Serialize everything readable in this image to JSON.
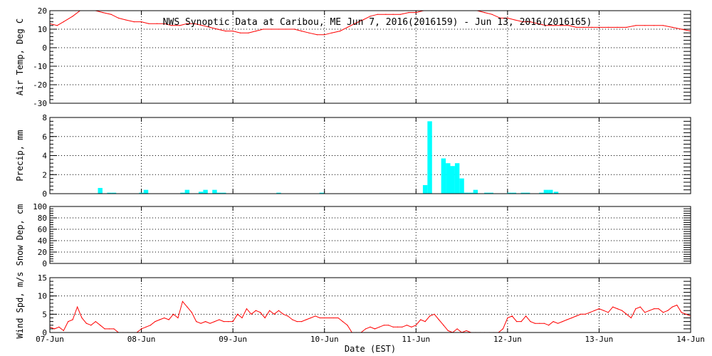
{
  "chart_data": {
    "type": "line",
    "title": "NWS Synoptic Data at Caribou, ME   Jun  7, 2016(2016159) - Jun 13, 2016(2016165)",
    "xlabel": "Date (EST)",
    "x_ticks": [
      "07-Jun",
      "08-Jun",
      "09-Jun",
      "10-Jun",
      "11-Jun",
      "12-Jun",
      "13-Jun",
      "14-Jun"
    ],
    "x_range_days": [
      0,
      7
    ],
    "grid": true,
    "colors": {
      "line": "#ff0000",
      "bar": "#00ffff",
      "axis": "#000000",
      "grid": "#000000"
    },
    "panels": [
      {
        "type": "line",
        "ylabel": "Air Temp, Deg C",
        "ylim": [
          -30,
          20
        ],
        "yticks": [
          20,
          10,
          0,
          -10,
          -20,
          -30
        ],
        "series": [
          {
            "color": "#ff0000",
            "x_days": [
              0.0,
              0.08,
              0.15,
              0.25,
              0.33,
              0.4,
              0.5,
              0.58,
              0.67,
              0.75,
              0.83,
              0.92,
              1.0,
              1.08,
              1.17,
              1.25,
              1.33,
              1.42,
              1.5,
              1.58,
              1.67,
              1.75,
              1.83,
              1.92,
              2.0,
              2.08,
              2.17,
              2.25,
              2.33,
              2.42,
              2.5,
              2.58,
              2.67,
              2.75,
              2.83,
              2.92,
              3.0,
              3.08,
              3.17,
              3.25,
              3.33,
              3.42,
              3.5,
              3.58,
              3.67,
              3.75,
              3.83,
              3.92,
              4.0,
              4.08,
              4.17,
              4.25,
              4.33,
              4.42,
              4.5,
              4.58,
              4.67,
              4.75,
              4.83,
              4.92,
              5.0,
              5.08,
              5.17,
              5.25,
              5.33,
              5.42,
              5.5,
              5.58,
              5.67,
              5.75,
              5.83,
              5.92,
              6.0,
              6.1,
              6.2,
              6.3,
              6.4,
              6.5,
              6.6,
              6.7,
              6.8,
              6.9,
              7.0
            ],
            "values": [
              13,
              12,
              14,
              17,
              20,
              22,
              20,
              19,
              18,
              16,
              15,
              14,
              14,
              13,
              13,
              13,
              12,
              12,
              13,
              13,
              12,
              11,
              10,
              9,
              9,
              8,
              8,
              9,
              10,
              10,
              10,
              10,
              10,
              9,
              8,
              7,
              7,
              8,
              9,
              11,
              13,
              15,
              17,
              18,
              18,
              18,
              18,
              19,
              19,
              20,
              20,
              21,
              22,
              22,
              21,
              21,
              20,
              19,
              18,
              16,
              16,
              15,
              14,
              14,
              13,
              12,
              12,
              12,
              12,
              11,
              11,
              11,
              11,
              11,
              11,
              11,
              12,
              12,
              12,
              12,
              11,
              10,
              9
            ]
          }
        ]
      },
      {
        "type": "bar",
        "ylabel": "Precip, mm",
        "ylim": [
          0,
          8
        ],
        "yticks": [
          8,
          6,
          4,
          2,
          0
        ],
        "series": [
          {
            "color": "#00ffff",
            "x_days": [
              0.55,
              0.65,
              0.7,
              1.0,
              1.05,
              1.45,
              1.5,
              1.65,
              1.7,
              1.8,
              1.85,
              1.9,
              2.5,
              2.97,
              4.1,
              4.15,
              4.3,
              4.35,
              4.4,
              4.45,
              4.5,
              4.55,
              4.6,
              4.65,
              4.77,
              4.82,
              5.02,
              5.07,
              5.17,
              5.22,
              5.37,
              5.42,
              5.47,
              5.53
            ],
            "values": [
              0.6,
              0.1,
              0.1,
              0.1,
              0.4,
              0.1,
              0.4,
              0.2,
              0.4,
              0.4,
              0.1,
              0.1,
              0.1,
              0.1,
              0.9,
              7.6,
              3.7,
              3.2,
              2.9,
              3.2,
              1.6,
              0.1,
              0.1,
              0.4,
              0.1,
              0.1,
              0.1,
              0.1,
              0.1,
              0.1,
              0.1,
              0.4,
              0.4,
              0.2
            ]
          }
        ]
      },
      {
        "type": "line",
        "ylabel": "Snow Dep, cm",
        "ylim": [
          0,
          100
        ],
        "yticks": [
          100,
          80,
          60,
          40,
          20,
          0
        ],
        "series": []
      },
      {
        "type": "line",
        "ylabel": "Wind Spd, m/s",
        "ylim": [
          0,
          15
        ],
        "yticks": [
          15,
          10,
          5,
          0
        ],
        "series": [
          {
            "color": "#ff0000",
            "x_days": [
              0.0,
              0.05,
              0.1,
              0.15,
              0.2,
              0.25,
              0.3,
              0.35,
              0.4,
              0.45,
              0.5,
              0.55,
              0.6,
              0.65,
              0.7,
              0.75,
              0.8,
              0.85,
              0.9,
              0.95,
              1.0,
              1.05,
              1.1,
              1.15,
              1.2,
              1.25,
              1.3,
              1.35,
              1.4,
              1.45,
              1.5,
              1.55,
              1.6,
              1.65,
              1.7,
              1.75,
              1.8,
              1.85,
              1.9,
              1.95,
              2.0,
              2.05,
              2.1,
              2.15,
              2.2,
              2.25,
              2.3,
              2.35,
              2.4,
              2.45,
              2.5,
              2.55,
              2.6,
              2.65,
              2.7,
              2.75,
              2.8,
              2.85,
              2.9,
              2.95,
              3.0,
              3.05,
              3.1,
              3.15,
              3.2,
              3.25,
              3.3,
              3.35,
              3.4,
              3.45,
              3.5,
              3.55,
              3.6,
              3.65,
              3.7,
              3.75,
              3.8,
              3.85,
              3.9,
              3.95,
              4.0,
              4.05,
              4.1,
              4.15,
              4.2,
              4.25,
              4.3,
              4.35,
              4.4,
              4.45,
              4.5,
              4.55,
              4.6,
              4.65,
              4.7,
              4.75,
              4.8,
              4.85,
              4.9,
              4.95,
              5.0,
              5.05,
              5.1,
              5.15,
              5.2,
              5.25,
              5.3,
              5.35,
              5.4,
              5.45,
              5.5,
              5.55,
              5.6,
              5.65,
              5.7,
              5.75,
              5.8,
              5.85,
              5.9,
              5.95,
              6.0,
              6.05,
              6.1,
              6.15,
              6.2,
              6.25,
              6.3,
              6.35,
              6.4,
              6.45,
              6.5,
              6.55,
              6.6,
              6.65,
              6.7,
              6.75,
              6.8,
              6.85,
              6.9,
              6.95,
              7.0
            ],
            "values": [
              1.5,
              1.0,
              1.5,
              0.5,
              3.0,
              3.5,
              7.0,
              4.0,
              2.5,
              2.0,
              3.0,
              2.0,
              1.0,
              1.0,
              1.0,
              0.0,
              0.0,
              0.0,
              0.0,
              0.0,
              1.0,
              1.5,
              2.0,
              3.0,
              3.5,
              4.0,
              3.5,
              5.0,
              4.0,
              8.5,
              7.0,
              5.5,
              3.0,
              2.5,
              3.0,
              2.5,
              3.0,
              3.5,
              3.0,
              3.0,
              3.0,
              5.0,
              4.0,
              6.5,
              5.0,
              6.0,
              5.5,
              4.0,
              6.0,
              5.0,
              6.0,
              5.0,
              4.5,
              3.5,
              3.0,
              3.0,
              3.5,
              4.0,
              4.5,
              4.0,
              4.0,
              4.0,
              4.0,
              4.0,
              3.0,
              2.0,
              0.0,
              0.0,
              0.0,
              1.0,
              1.5,
              1.0,
              1.5,
              2.0,
              2.0,
              1.5,
              1.5,
              1.5,
              2.0,
              1.5,
              2.0,
              3.5,
              3.0,
              4.5,
              5.0,
              3.5,
              2.0,
              0.5,
              0.0,
              1.0,
              0.0,
              0.5,
              0.0,
              0.0,
              0.0,
              0.0,
              0.0,
              0.0,
              0.0,
              1.0,
              4.0,
              4.5,
              3.0,
              3.0,
              4.5,
              3.0,
              2.5,
              2.5,
              2.5,
              2.0,
              3.0,
              2.5,
              3.0,
              3.5,
              4.0,
              4.5,
              5.0,
              5.0,
              5.5,
              6.0,
              6.5,
              6.0,
              5.5,
              7.0,
              6.5,
              6.0,
              5.0,
              4.0,
              6.5,
              7.0,
              5.5,
              6.0,
              6.5,
              6.5,
              5.5,
              6.0,
              7.0,
              7.5,
              5.5,
              5.0,
              4.5
            ]
          }
        ]
      }
    ]
  }
}
